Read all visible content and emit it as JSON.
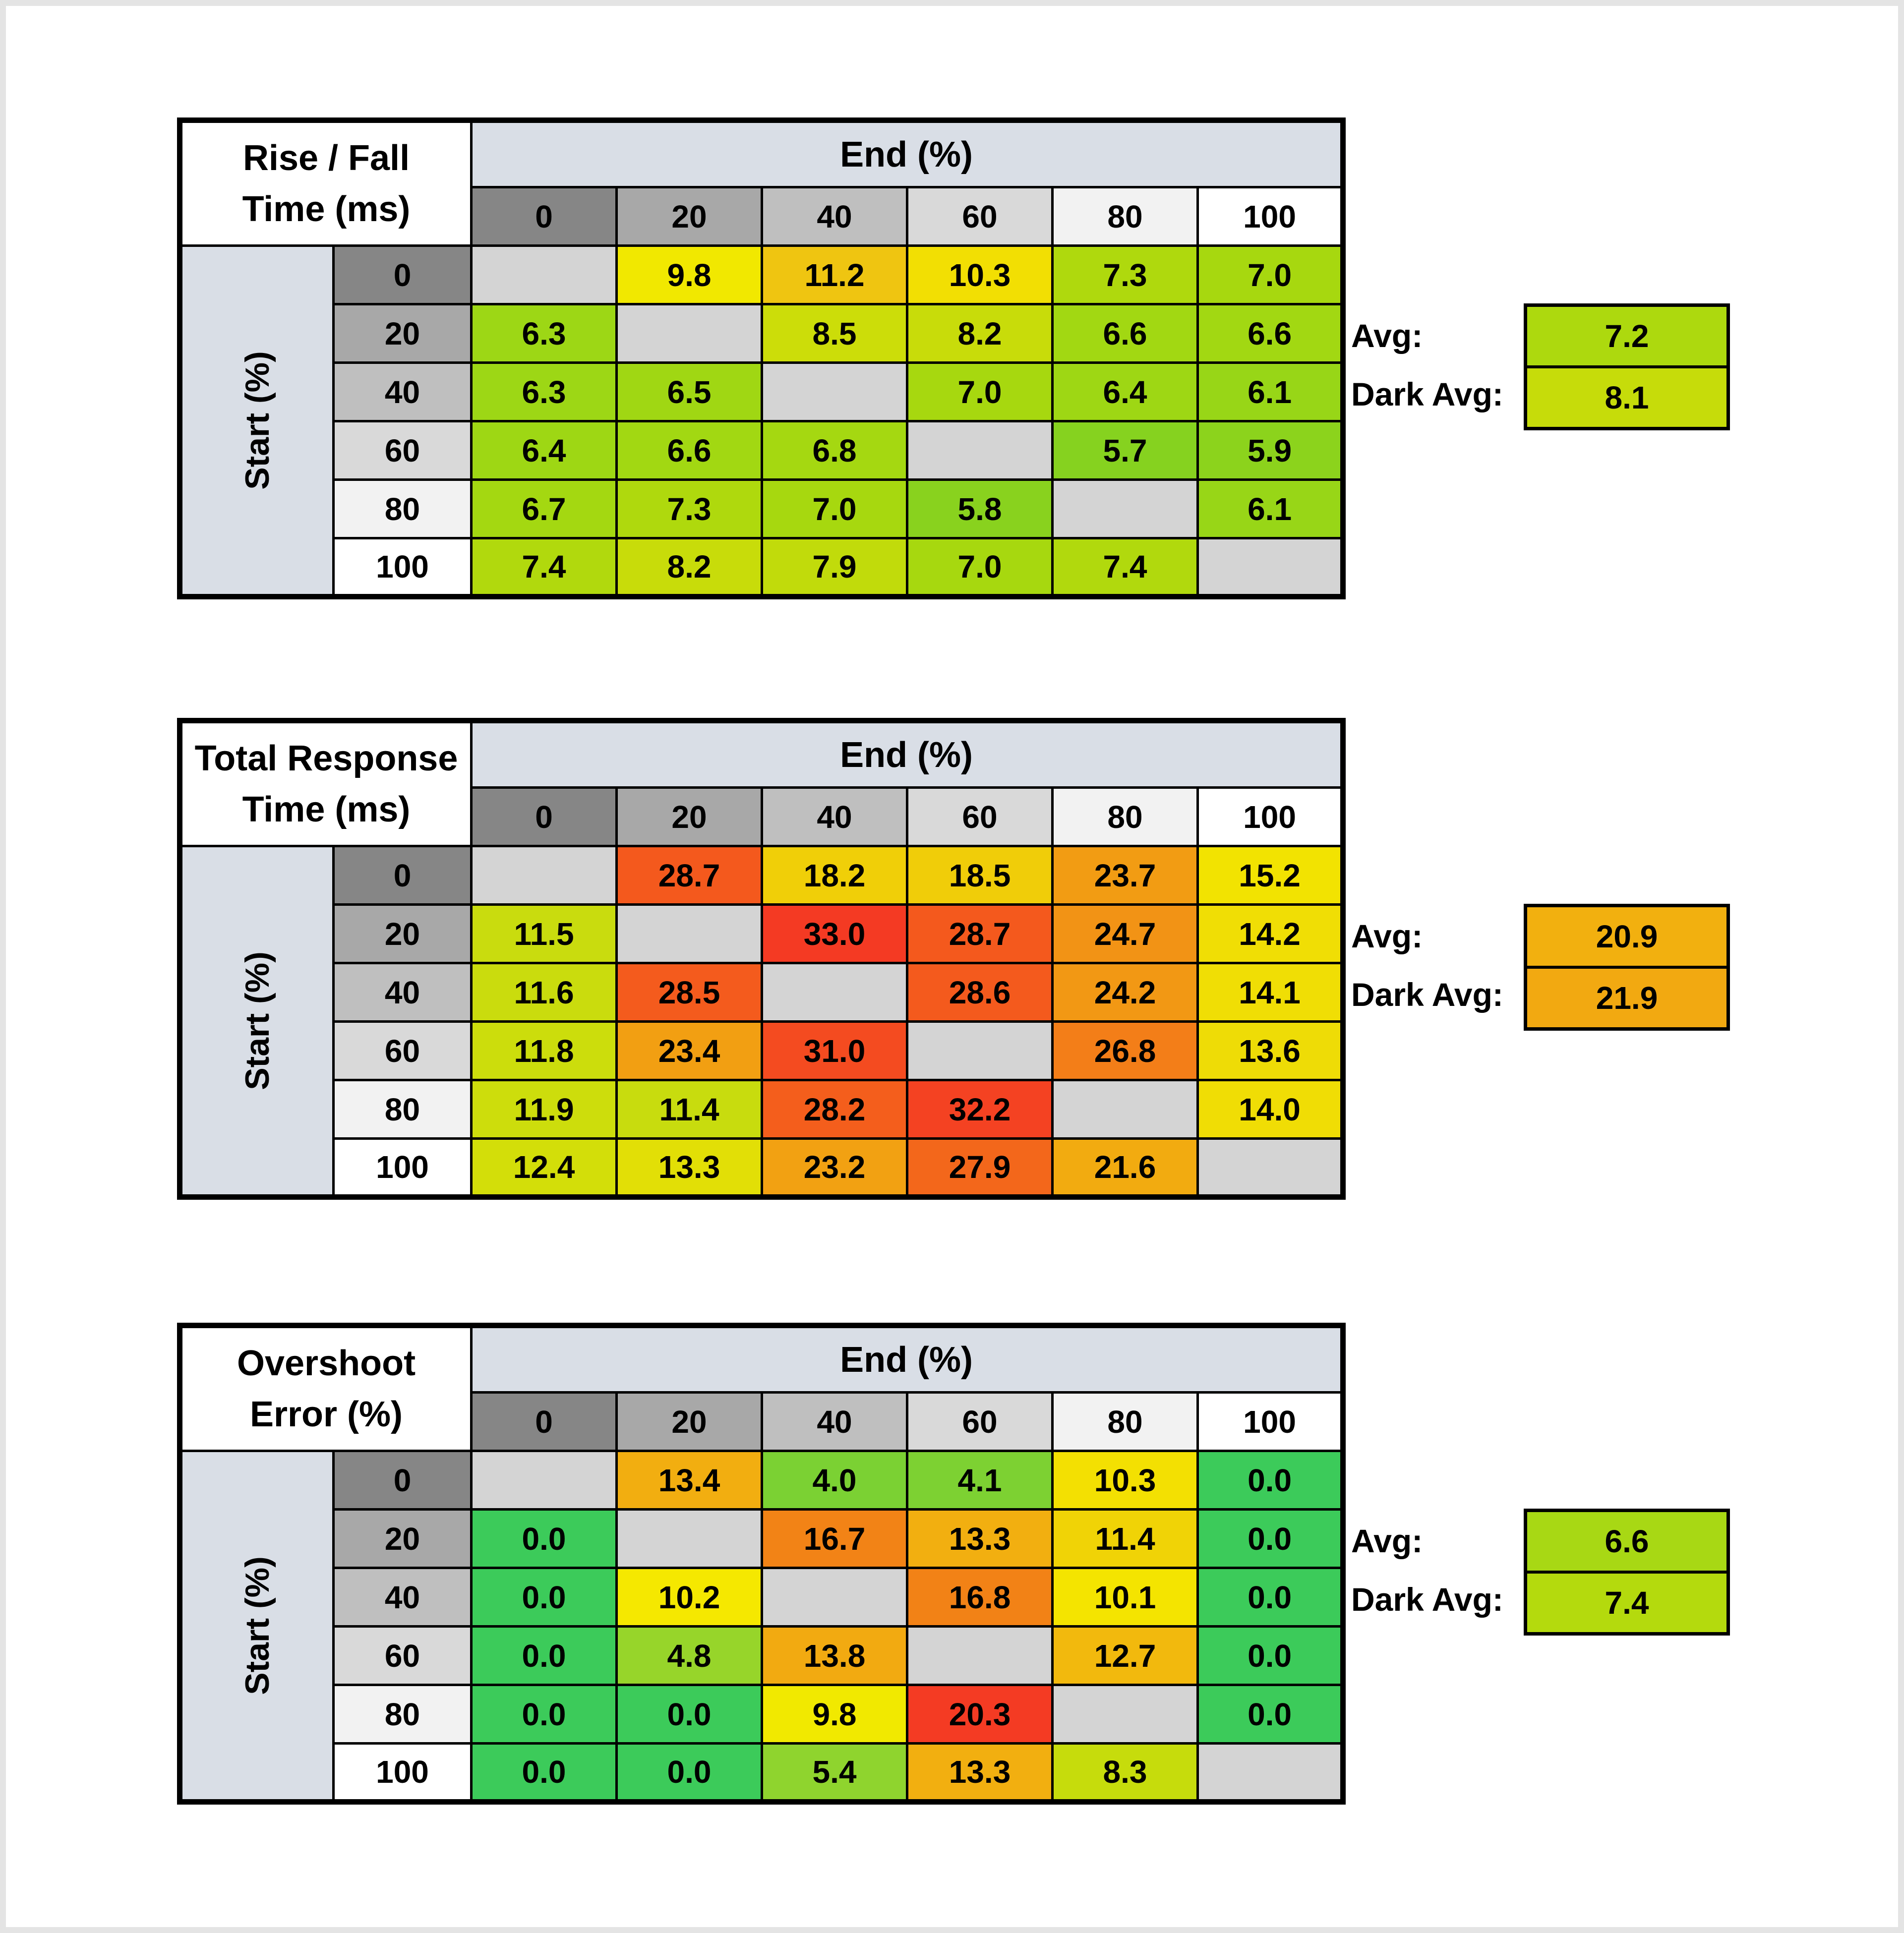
{
  "page": {
    "background": "#FFFFFF",
    "frame_color": "#E4E4E4",
    "border_color": "#000000",
    "axis_band_color": "#D9DEE6",
    "diagonal_color": "#D4D4D4",
    "header_shades": [
      "#868686",
      "#A8A8A8",
      "#BFBFBF",
      "#D9D9D9",
      "#F2F2F2",
      "#FFFFFF"
    ]
  },
  "tables": [
    {
      "title_line1": "Rise / Fall",
      "title_line2": "Time (ms)",
      "col_axis_label": "End (%)",
      "row_axis_label": "Start (%)",
      "col_headers": [
        "0",
        "20",
        "40",
        "60",
        "80",
        "100"
      ],
      "row_headers": [
        "0",
        "20",
        "40",
        "60",
        "80",
        "100"
      ],
      "cells": [
        [
          null,
          {
            "v": "9.8",
            "c": "#F1E800"
          },
          {
            "v": "11.2",
            "c": "#EFC511"
          },
          {
            "v": "10.3",
            "c": "#F2DF03"
          },
          {
            "v": "7.3",
            "c": "#AFD90D"
          },
          {
            "v": "7.0",
            "c": "#A7D80F"
          }
        ],
        [
          {
            "v": "6.3",
            "c": "#9DD715"
          },
          null,
          {
            "v": "8.5",
            "c": "#CCDD09"
          },
          {
            "v": "8.2",
            "c": "#C8DC0A"
          },
          {
            "v": "6.6",
            "c": "#A2D812"
          },
          {
            "v": "6.6",
            "c": "#A2D812"
          }
        ],
        [
          {
            "v": "6.3",
            "c": "#9DD715"
          },
          {
            "v": "6.5",
            "c": "#A0D713"
          },
          null,
          {
            "v": "7.0",
            "c": "#A7D80F"
          },
          {
            "v": "6.4",
            "c": "#9ED714"
          },
          {
            "v": "6.1",
            "c": "#98D617"
          }
        ],
        [
          {
            "v": "6.4",
            "c": "#9ED714"
          },
          {
            "v": "6.6",
            "c": "#A2D812"
          },
          {
            "v": "6.8",
            "c": "#A5D811"
          },
          null,
          {
            "v": "5.7",
            "c": "#86D21F"
          },
          {
            "v": "5.9",
            "c": "#8CD31C"
          }
        ],
        [
          {
            "v": "6.7",
            "c": "#A4D811"
          },
          {
            "v": "7.3",
            "c": "#AFD90D"
          },
          {
            "v": "7.0",
            "c": "#A7D80F"
          },
          {
            "v": "5.8",
            "c": "#89D21E"
          },
          null,
          {
            "v": "6.1",
            "c": "#98D617"
          }
        ],
        [
          {
            "v": "7.4",
            "c": "#B1D90D"
          },
          {
            "v": "8.2",
            "c": "#C8DC0A"
          },
          {
            "v": "7.9",
            "c": "#C1DB0B"
          },
          {
            "v": "7.0",
            "c": "#A7D80F"
          },
          {
            "v": "7.4",
            "c": "#B1D90D"
          },
          null
        ]
      ],
      "avg_label": "Avg:",
      "dark_avg_label": "Dark Avg:",
      "avg": {
        "value": "7.2",
        "color": "#ADD90E"
      },
      "dark_avg": {
        "value": "8.1",
        "color": "#C6DC0A"
      }
    },
    {
      "title_line1": "Total Response",
      "title_line2": "Time (ms)",
      "col_axis_label": "End (%)",
      "row_axis_label": "Start (%)",
      "col_headers": [
        "0",
        "20",
        "40",
        "60",
        "80",
        "100"
      ],
      "row_headers": [
        "0",
        "20",
        "40",
        "60",
        "80",
        "100"
      ],
      "cells": [
        [
          null,
          {
            "v": "28.7",
            "c": "#F4591D"
          },
          {
            "v": "18.2",
            "c": "#F0CF08"
          },
          {
            "v": "18.5",
            "c": "#F0CD09"
          },
          {
            "v": "23.7",
            "c": "#F29C13"
          },
          {
            "v": "15.2",
            "c": "#F2E301"
          }
        ],
        [
          {
            "v": "11.5",
            "c": "#C9DC0E"
          },
          null,
          {
            "v": "33.0",
            "c": "#F43A23"
          },
          {
            "v": "28.7",
            "c": "#F4591D"
          },
          {
            "v": "24.7",
            "c": "#F29315"
          },
          {
            "v": "14.2",
            "c": "#F0DE05"
          }
        ],
        [
          {
            "v": "11.6",
            "c": "#CADC0D"
          },
          {
            "v": "28.5",
            "c": "#F45B1D"
          },
          null,
          {
            "v": "28.6",
            "c": "#F45A1D"
          },
          {
            "v": "24.2",
            "c": "#F29814"
          },
          {
            "v": "14.1",
            "c": "#F0DE05"
          }
        ],
        [
          {
            "v": "11.8",
            "c": "#CCDD0C"
          },
          {
            "v": "23.4",
            "c": "#F29F12"
          },
          {
            "v": "31.0",
            "c": "#F44B20"
          },
          null,
          {
            "v": "26.8",
            "c": "#F37E18"
          },
          {
            "v": "13.6",
            "c": "#EEDC06"
          }
        ],
        [
          {
            "v": "11.9",
            "c": "#CDDD0C"
          },
          {
            "v": "11.4",
            "c": "#C8DC0E"
          },
          {
            "v": "28.2",
            "c": "#F45E1C"
          },
          {
            "v": "32.2",
            "c": "#F44222"
          },
          null,
          {
            "v": "14.0",
            "c": "#F0DD05"
          }
        ],
        [
          {
            "v": "12.4",
            "c": "#D3DE09"
          },
          {
            "v": "13.3",
            "c": "#E2DF06"
          },
          {
            "v": "23.2",
            "c": "#F2A112"
          },
          {
            "v": "27.9",
            "c": "#F3671B"
          },
          {
            "v": "21.6",
            "c": "#F2AB10"
          },
          null
        ]
      ],
      "avg_label": "Avg:",
      "dark_avg_label": "Dark Avg:",
      "avg": {
        "value": "20.9",
        "color": "#F2B00F"
      },
      "dark_avg": {
        "value": "21.9",
        "color": "#F2A911"
      }
    },
    {
      "title_line1": "Overshoot",
      "title_line2": "Error (%)",
      "col_axis_label": "End (%)",
      "row_axis_label": "Start (%)",
      "col_headers": [
        "0",
        "20",
        "40",
        "60",
        "80",
        "100"
      ],
      "row_headers": [
        "0",
        "20",
        "40",
        "60",
        "80",
        "100"
      ],
      "cells": [
        [
          null,
          {
            "v": "13.4",
            "c": "#F2AE10"
          },
          {
            "v": "4.0",
            "c": "#7BD133"
          },
          {
            "v": "4.1",
            "c": "#7DD132"
          },
          {
            "v": "10.3",
            "c": "#F3E002"
          },
          {
            "v": "0.0",
            "c": "#3CCB5A"
          }
        ],
        [
          {
            "v": "0.0",
            "c": "#3CCB5A"
          },
          null,
          {
            "v": "16.7",
            "c": "#F28316"
          },
          {
            "v": "13.3",
            "c": "#F2AF10"
          },
          {
            "v": "11.4",
            "c": "#F0D306"
          },
          {
            "v": "0.0",
            "c": "#3CCB5A"
          }
        ],
        [
          {
            "v": "0.0",
            "c": "#3CCB5A"
          },
          {
            "v": "10.2",
            "c": "#F5E800"
          },
          null,
          {
            "v": "16.8",
            "c": "#F28216"
          },
          {
            "v": "10.1",
            "c": "#F4E400"
          },
          {
            "v": "0.0",
            "c": "#3CCB5A"
          }
        ],
        [
          {
            "v": "0.0",
            "c": "#3CCB5A"
          },
          {
            "v": "4.8",
            "c": "#97D52A"
          },
          {
            "v": "13.8",
            "c": "#F2AA11"
          },
          null,
          {
            "v": "12.7",
            "c": "#F2B90D"
          },
          {
            "v": "0.0",
            "c": "#3CCB5A"
          }
        ],
        [
          {
            "v": "0.0",
            "c": "#3CCB5A"
          },
          {
            "v": "0.0",
            "c": "#3CCB5A"
          },
          {
            "v": "9.8",
            "c": "#F1E900"
          },
          {
            "v": "20.3",
            "c": "#F43B23"
          },
          null,
          {
            "v": "0.0",
            "c": "#3CCB5A"
          }
        ],
        [
          {
            "v": "0.0",
            "c": "#3CCB5A"
          },
          {
            "v": "0.0",
            "c": "#3CCB5A"
          },
          {
            "v": "5.4",
            "c": "#8FD42E"
          },
          {
            "v": "13.3",
            "c": "#F2AF10"
          },
          {
            "v": "8.3",
            "c": "#C6DC0C"
          },
          null
        ]
      ],
      "avg_label": "Avg:",
      "dark_avg_label": "Dark Avg:",
      "avg": {
        "value": "6.6",
        "color": "#A8D814"
      },
      "dark_avg": {
        "value": "7.4",
        "color": "#B4DA0D"
      }
    }
  ],
  "chart_data": [
    {
      "type": "heatmap",
      "title": "Rise / Fall Time (ms)",
      "xlabel": "End (%)",
      "ylabel": "Start (%)",
      "x": [
        0,
        20,
        40,
        60,
        80,
        100
      ],
      "y": [
        0,
        20,
        40,
        60,
        80,
        100
      ],
      "values": [
        [
          null,
          9.8,
          11.2,
          10.3,
          7.3,
          7.0
        ],
        [
          6.3,
          null,
          8.5,
          8.2,
          6.6,
          6.6
        ],
        [
          6.3,
          6.5,
          null,
          7.0,
          6.4,
          6.1
        ],
        [
          6.4,
          6.6,
          6.8,
          null,
          5.7,
          5.9
        ],
        [
          6.7,
          7.3,
          7.0,
          5.8,
          null,
          6.1
        ],
        [
          7.4,
          8.2,
          7.9,
          7.0,
          7.4,
          null
        ]
      ],
      "avg": 7.2,
      "dark_avg": 8.1,
      "color_scale": "green-yellow-red (low to high)"
    },
    {
      "type": "heatmap",
      "title": "Total Response Time (ms)",
      "xlabel": "End (%)",
      "ylabel": "Start (%)",
      "x": [
        0,
        20,
        40,
        60,
        80,
        100
      ],
      "y": [
        0,
        20,
        40,
        60,
        80,
        100
      ],
      "values": [
        [
          null,
          28.7,
          18.2,
          18.5,
          23.7,
          15.2
        ],
        [
          11.5,
          null,
          33.0,
          28.7,
          24.7,
          14.2
        ],
        [
          11.6,
          28.5,
          null,
          28.6,
          24.2,
          14.1
        ],
        [
          11.8,
          23.4,
          31.0,
          null,
          26.8,
          13.6
        ],
        [
          11.9,
          11.4,
          28.2,
          32.2,
          null,
          14.0
        ],
        [
          12.4,
          13.3,
          23.2,
          27.9,
          21.6,
          null
        ]
      ],
      "avg": 20.9,
      "dark_avg": 21.9,
      "color_scale": "green-yellow-red (low to high)"
    },
    {
      "type": "heatmap",
      "title": "Overshoot Error (%)",
      "xlabel": "End (%)",
      "ylabel": "Start (%)",
      "x": [
        0,
        20,
        40,
        60,
        80,
        100
      ],
      "y": [
        0,
        20,
        40,
        60,
        80,
        100
      ],
      "values": [
        [
          null,
          13.4,
          4.0,
          4.1,
          10.3,
          0.0
        ],
        [
          0.0,
          null,
          16.7,
          13.3,
          11.4,
          0.0
        ],
        [
          0.0,
          10.2,
          null,
          16.8,
          10.1,
          0.0
        ],
        [
          0.0,
          4.8,
          13.8,
          null,
          12.7,
          0.0
        ],
        [
          0.0,
          0.0,
          9.8,
          20.3,
          null,
          0.0
        ],
        [
          0.0,
          0.0,
          5.4,
          13.3,
          8.3,
          null
        ]
      ],
      "avg": 6.6,
      "dark_avg": 7.4,
      "color_scale": "green-yellow-red (low to high)"
    }
  ]
}
